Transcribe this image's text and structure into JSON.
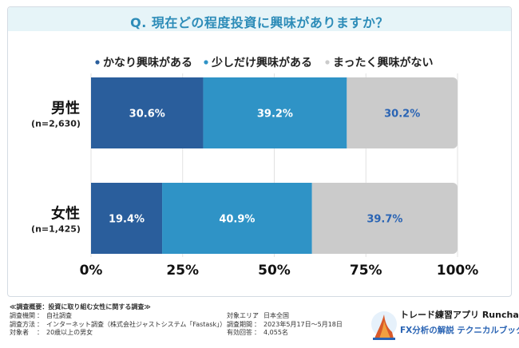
{
  "title": "Q. 現在どの程度投資に興味がありますか？",
  "legend": [
    {
      "label": "かなり興味がある",
      "color": "#2a5e9c"
    },
    {
      "label": "少しだけ興味がある",
      "color": "#2f93c6"
    },
    {
      "label": "まったく興味がない",
      "color": "#cbcbcb"
    }
  ],
  "chart_data": {
    "type": "bar",
    "orientation": "horizontal-stacked",
    "categories": [
      "男性",
      "女性"
    ],
    "category_notes": [
      "(n=2,630)",
      "(n=1,425)"
    ],
    "series": [
      {
        "name": "かなり興味がある",
        "values": [
          30.6,
          19.4
        ],
        "labels": [
          "30.6%",
          "19.4%"
        ]
      },
      {
        "name": "少しだけ興味がある",
        "values": [
          39.2,
          40.9
        ],
        "labels": [
          "39.2%",
          "40.9%"
        ]
      },
      {
        "name": "まったく興味がない",
        "values": [
          30.2,
          39.7
        ],
        "labels": [
          "30.2%",
          "39.7%"
        ]
      }
    ],
    "xlim": [
      0,
      100
    ],
    "x_ticks": [
      "0%",
      "25%",
      "50%",
      "75%",
      "100%"
    ],
    "legend_position": "top",
    "value_label_colors": [
      "#ffffff",
      "#ffffff",
      "#2a64b4"
    ]
  },
  "survey": {
    "heading": "≪調査概要：投資に取り組む女性に関する調査≫",
    "left_rows": [
      {
        "key": "調査機関",
        "value": "自社調査"
      },
      {
        "key": "調査方法",
        "value": "インターネット調査（株式会社ジャストシステム「Fastask」）"
      },
      {
        "key": "対象者",
        "value": "20歳以上の男女"
      }
    ],
    "right_rows": [
      {
        "key": "対象エリア",
        "value": "日本全国"
      },
      {
        "key": "調査期間",
        "value": "2023年5月17日～5月18日"
      },
      {
        "key": "有効回答",
        "value": "4,055名"
      }
    ]
  },
  "brand": {
    "line1": "トレード練習アプリ Runcha",
    "line2": "FX分析の解説 テクニカルブック",
    "icon": "logo-mark-icon"
  }
}
